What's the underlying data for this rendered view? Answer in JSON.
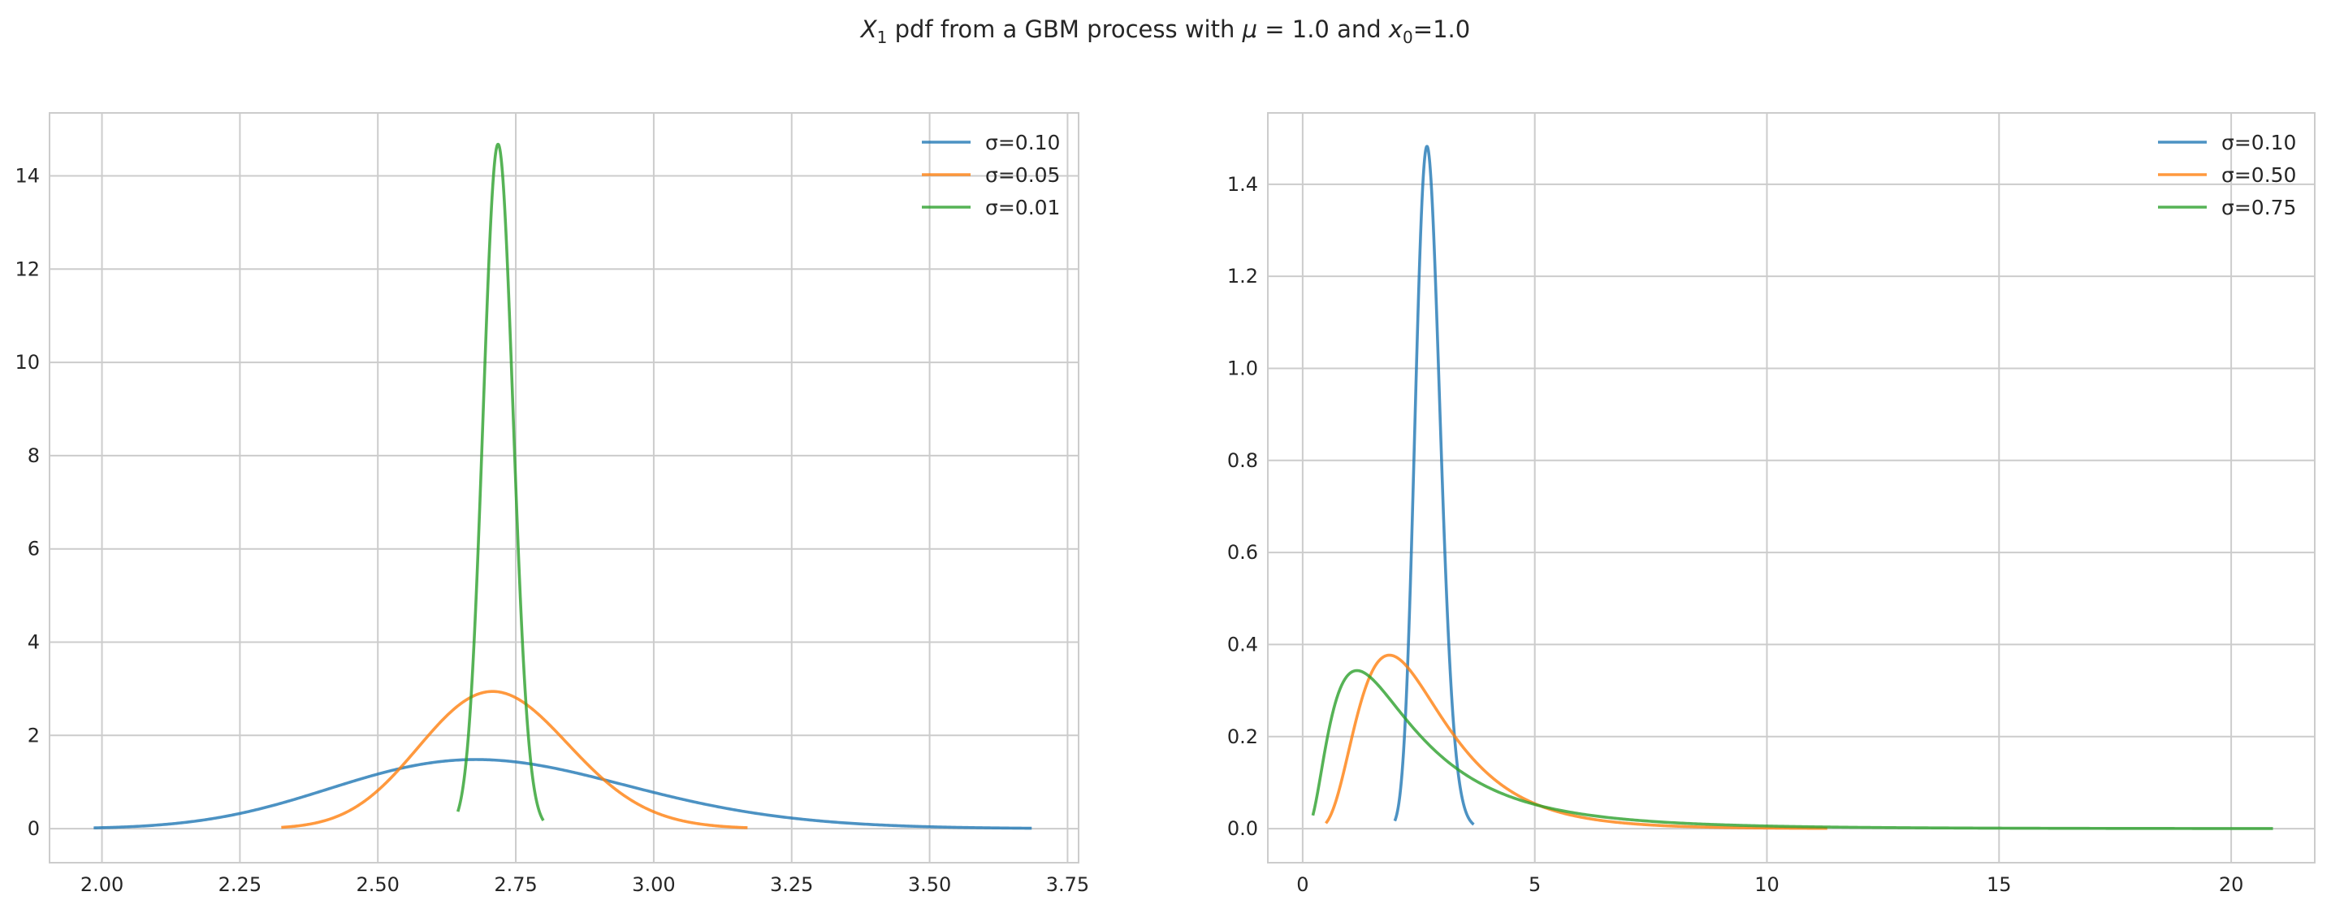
{
  "figure": {
    "title_var": "X",
    "title_sub": "1",
    "title_mid": " pdf from a GBM process with ",
    "title_mu": "μ",
    "title_mu_val": " = 1.0 and ",
    "title_x": "x",
    "title_x_sub": "0",
    "title_x_val": "=1.0"
  },
  "chart_data": [
    {
      "type": "line",
      "title": "",
      "xlabel": "",
      "ylabel": "",
      "xlim": [
        1.905,
        3.77
      ],
      "ylim": [
        -0.73,
        15.35
      ],
      "xticks": [
        2.0,
        2.25,
        2.5,
        2.75,
        3.0,
        3.25,
        3.5,
        3.75
      ],
      "xtick_labels": [
        "2.00",
        "2.25",
        "2.50",
        "2.75",
        "3.00",
        "3.25",
        "3.50",
        "3.75"
      ],
      "yticks": [
        0,
        2,
        4,
        6,
        8,
        10,
        12,
        14
      ],
      "ytick_labels": [
        "0",
        "2",
        "4",
        "6",
        "8",
        "10",
        "12",
        "14"
      ],
      "grid": true,
      "legend_position": "top-right",
      "series": [
        {
          "name": "σ=0.10",
          "sigma": 0.1,
          "x_range": [
            1.985,
            3.685
          ],
          "color": "#1f77b4"
        },
        {
          "name": "σ=0.05",
          "sigma": 0.05,
          "x_range": [
            2.325,
            3.17
          ],
          "color": "#ff7f0e"
        },
        {
          "name": "σ=0.01",
          "sigma": 0.01,
          "x_range": [
            2.645,
            2.8
          ],
          "color": "#2ca02c"
        }
      ]
    },
    {
      "type": "line",
      "title": "",
      "xlabel": "",
      "ylabel": "",
      "xlim": [
        -0.75,
        21.8
      ],
      "ylim": [
        -0.074,
        1.555
      ],
      "xticks": [
        0,
        5,
        10,
        15,
        20
      ],
      "xtick_labels": [
        "0",
        "5",
        "10",
        "15",
        "20"
      ],
      "yticks": [
        0.0,
        0.2,
        0.4,
        0.6,
        0.8,
        1.0,
        1.2,
        1.4
      ],
      "ytick_labels": [
        "0.0",
        "0.2",
        "0.4",
        "0.6",
        "0.8",
        "1.0",
        "1.2",
        "1.4"
      ],
      "grid": true,
      "legend_position": "top-right",
      "series": [
        {
          "name": "σ=0.10",
          "sigma": 0.1,
          "x_range": [
            1.985,
            3.685
          ],
          "color": "#1f77b4"
        },
        {
          "name": "σ=0.50",
          "sigma": 0.5,
          "x_range": [
            0.5,
            11.3
          ],
          "color": "#ff7f0e"
        },
        {
          "name": "σ=0.75",
          "sigma": 0.75,
          "x_range": [
            0.22,
            20.9
          ],
          "color": "#2ca02c"
        }
      ]
    }
  ]
}
